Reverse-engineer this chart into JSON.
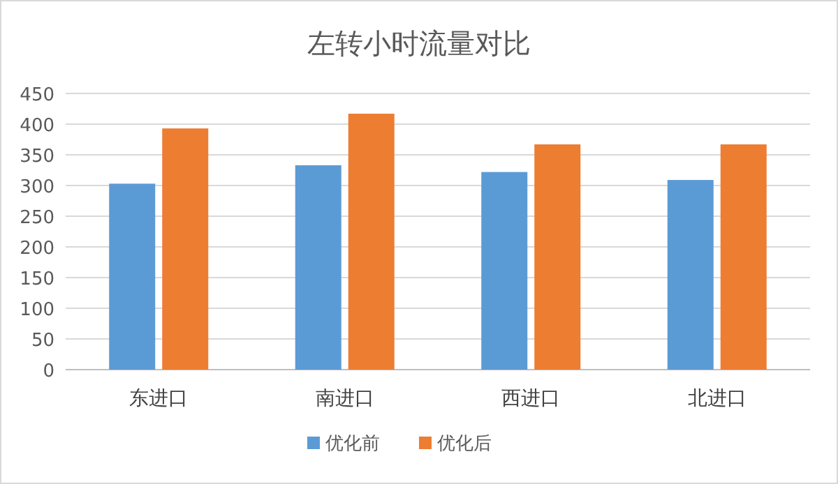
{
  "chart_data": {
    "type": "bar",
    "title": "左转小时流量对比",
    "categories": [
      "东进口",
      "南进口",
      "西进口",
      "北进口"
    ],
    "series": [
      {
        "name": "优化前",
        "color": "#5b9bd5",
        "values": [
          303,
          333,
          322,
          309
        ]
      },
      {
        "name": "优化后",
        "color": "#ed7d31",
        "values": [
          393,
          417,
          367,
          367
        ]
      }
    ],
    "ylim": [
      0,
      450
    ],
    "yticks": [
      0,
      50,
      100,
      150,
      200,
      250,
      300,
      350,
      400,
      450
    ],
    "grid": "y",
    "legend": "bottom"
  }
}
